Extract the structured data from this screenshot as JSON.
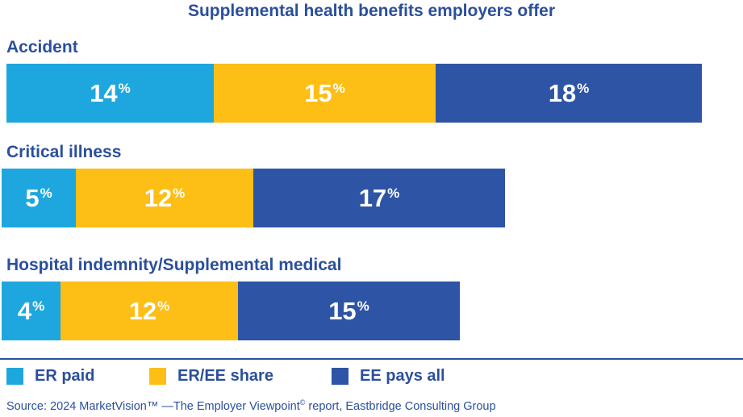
{
  "colors": {
    "er_paid": "#1ea7df",
    "er_ee_share": "#fdbe16",
    "ee_pays_all": "#2e55a5",
    "text": "#2b4f9c"
  },
  "chart_data": {
    "type": "bar",
    "orientation": "horizontal",
    "stacked": true,
    "title": "Supplemental health benefits employers offer",
    "categories": [
      "Accident",
      "Critical illness",
      "Hospital indemnity/Supplemental medical"
    ],
    "series": [
      {
        "name": "ER paid",
        "values": [
          14,
          5,
          4
        ]
      },
      {
        "name": "ER/EE share",
        "values": [
          15,
          12,
          12
        ]
      },
      {
        "name": "EE pays all",
        "values": [
          18,
          17,
          15
        ]
      }
    ],
    "value_suffix": "%",
    "legend_position": "bottom",
    "grid": false
  },
  "source": {
    "text_before": "Source: 2024 MarketVision™ —The Employer Viewpoint",
    "sup": "©",
    "text_after": " report, Eastbridge Consulting Group"
  }
}
